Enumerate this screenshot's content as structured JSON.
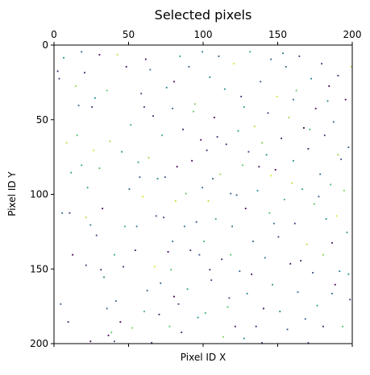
{
  "chart_data": {
    "type": "heatmap",
    "title": "Selected pixels",
    "xlabel": "Pixel ID X",
    "ylabel": "Pixel ID Y",
    "xlim": [
      0,
      200
    ],
    "ylim": [
      200,
      0
    ],
    "x_ticks": [
      "0",
      "50",
      "100",
      "150",
      "200"
    ],
    "y_ticks": [
      "0",
      "50",
      "100",
      "150",
      "200"
    ],
    "x_tick_position": "top",
    "grid": false,
    "colormap": "viridis",
    "colors": {
      "background": "#ffffff",
      "axes": "#000000",
      "low": "#440154",
      "mid_low": "#3b528b",
      "mid": "#21918c",
      "mid_high": "#5ec962",
      "high": "#fde725"
    },
    "pixels": [
      [
        2,
        17,
        0.1
      ],
      [
        3,
        22,
        0.2
      ],
      [
        6,
        8,
        0.5
      ],
      [
        8,
        65,
        0.9
      ],
      [
        10,
        112,
        0.2
      ],
      [
        14,
        27,
        0.85
      ],
      [
        16,
        40,
        0.35
      ],
      [
        18,
        4,
        0.3
      ],
      [
        18,
        80,
        0.6
      ],
      [
        20,
        18,
        0.1
      ],
      [
        22,
        95,
        0.55
      ],
      [
        24,
        120,
        0.4
      ],
      [
        25,
        41,
        0.15
      ],
      [
        26,
        70,
        0.95
      ],
      [
        28,
        127,
        0.2
      ],
      [
        30,
        82,
        0.7
      ],
      [
        31,
        150,
        0.1
      ],
      [
        33,
        155,
        0.45
      ],
      [
        35,
        176,
        0.3
      ],
      [
        36,
        194,
        0.0
      ],
      [
        38,
        192,
        0.75
      ],
      [
        40,
        198,
        0.25
      ],
      [
        42,
        6,
        0.9
      ],
      [
        44,
        185,
        0.0
      ],
      [
        45,
        71,
        0.5
      ],
      [
        48,
        14,
        0.05
      ],
      [
        50,
        96,
        0.35
      ],
      [
        52,
        189,
        0.8
      ],
      [
        54,
        137,
        0.1
      ],
      [
        56,
        78,
        0.55
      ],
      [
        58,
        32,
        0.2
      ],
      [
        60,
        178,
        0.65
      ],
      [
        61,
        9,
        0.05
      ],
      [
        62,
        164,
        0.3
      ],
      [
        63,
        75,
        0.85
      ],
      [
        64,
        16,
        0.4
      ],
      [
        66,
        47,
        0.15
      ],
      [
        67,
        148,
        0.95
      ],
      [
        68,
        114,
        0.2
      ],
      [
        70,
        180,
        0.1
      ],
      [
        72,
        60,
        0.6
      ],
      [
        74,
        88,
        0.25
      ],
      [
        75,
        28,
        0.45
      ],
      [
        76,
        138,
        0.0
      ],
      [
        78,
        150,
        0.7
      ],
      [
        79,
        42,
        0.35
      ],
      [
        80,
        24,
        0.05
      ],
      [
        81,
        104,
        0.9
      ],
      [
        83,
        173,
        0.2
      ],
      [
        84,
        7,
        0.55
      ],
      [
        86,
        56,
        0.1
      ],
      [
        87,
        121,
        0.4
      ],
      [
        88,
        99,
        0.75
      ],
      [
        90,
        14,
        0.3
      ],
      [
        91,
        137,
        0.15
      ],
      [
        92,
        77,
        0.0
      ],
      [
        94,
        39,
        0.8
      ],
      [
        95,
        118,
        0.25
      ],
      [
        96,
        182,
        0.5
      ],
      [
        98,
        63,
        0.05
      ],
      [
        99,
        95,
        0.35
      ],
      [
        100,
        131,
        0.65
      ],
      [
        102,
        70,
        0.1
      ],
      [
        103,
        104,
        0.9
      ],
      [
        104,
        21,
        0.45
      ],
      [
        105,
        157,
        0.2
      ],
      [
        107,
        48,
        0.0
      ],
      [
        108,
        116,
        0.6
      ],
      [
        110,
        7,
        0.3
      ],
      [
        111,
        86,
        0.85
      ],
      [
        112,
        143,
        0.15
      ],
      [
        114,
        29,
        0.5
      ],
      [
        115,
        66,
        0.1
      ],
      [
        116,
        175,
        0.7
      ],
      [
        118,
        99,
        0.25
      ],
      [
        119,
        121,
        0.4
      ],
      [
        120,
        12,
        0.95
      ],
      [
        121,
        188,
        0.05
      ],
      [
        123,
        57,
        0.55
      ],
      [
        124,
        151,
        0.3
      ],
      [
        125,
        34,
        0.15
      ],
      [
        126,
        80,
        0.75
      ],
      [
        128,
        109,
        0.0
      ],
      [
        129,
        166,
        0.45
      ],
      [
        130,
        71,
        0.2
      ],
      [
        131,
        4,
        0.6
      ],
      [
        133,
        131,
        0.35
      ],
      [
        134,
        54,
        0.9
      ],
      [
        135,
        188,
        0.1
      ],
      [
        136,
        97,
        0.5
      ],
      [
        138,
        24,
        0.25
      ],
      [
        139,
        65,
        0.8
      ],
      [
        140,
        176,
        0.05
      ],
      [
        141,
        142,
        0.4
      ],
      [
        143,
        45,
        0.15
      ],
      [
        144,
        112,
        0.7
      ],
      [
        145,
        9,
        0.3
      ],
      [
        146,
        160,
        0.55
      ],
      [
        148,
        83,
        0.0
      ],
      [
        149,
        34,
        0.95
      ],
      [
        150,
        128,
        0.2
      ],
      [
        151,
        178,
        0.45
      ],
      [
        152,
        62,
        0.1
      ],
      [
        154,
        103,
        0.65
      ],
      [
        155,
        14,
        0.35
      ],
      [
        156,
        190,
        0.25
      ],
      [
        157,
        48,
        0.85
      ],
      [
        158,
        146,
        0.05
      ],
      [
        160,
        77,
        0.5
      ],
      [
        161,
        119,
        0.15
      ],
      [
        162,
        30,
        0.75
      ],
      [
        163,
        165,
        0.4
      ],
      [
        164,
        7,
        0.2
      ],
      [
        166,
        96,
        0.6
      ],
      [
        167,
        55,
        0.0
      ],
      [
        168,
        183,
        0.3
      ],
      [
        169,
        133,
        0.9
      ],
      [
        170,
        69,
        0.1
      ],
      [
        172,
        22,
        0.45
      ],
      [
        173,
        152,
        0.25
      ],
      [
        174,
        106,
        0.7
      ],
      [
        175,
        42,
        0.05
      ],
      [
        176,
        174,
        0.55
      ],
      [
        178,
        86,
        0.35
      ],
      [
        179,
        12,
        0.15
      ],
      [
        180,
        140,
        0.8
      ],
      [
        181,
        60,
        0.2
      ],
      [
        182,
        116,
        0.5
      ],
      [
        184,
        27,
        0.0
      ],
      [
        185,
        93,
        0.65
      ],
      [
        186,
        166,
        0.4
      ],
      [
        187,
        51,
        0.3
      ],
      [
        189,
        114,
        0.95
      ],
      [
        190,
        20,
        0.1
      ],
      [
        191,
        151,
        0.45
      ],
      [
        192,
        76,
        0.25
      ],
      [
        193,
        188,
        0.7
      ],
      [
        195,
        36,
        0.05
      ],
      [
        196,
        125,
        0.55
      ],
      [
        197,
        68,
        0.35
      ],
      [
        198,
        170,
        0.15
      ],
      [
        199,
        14,
        0.85
      ],
      [
        12,
        140,
        0.0
      ],
      [
        47,
        121,
        0.6
      ],
      [
        71,
        159,
        0.3
      ],
      [
        85,
        192,
        0.1
      ],
      [
        93,
        44,
        0.75
      ],
      [
        117,
        169,
        0.2
      ],
      [
        127,
        196,
        0.5
      ],
      [
        137,
        81,
        0.05
      ],
      [
        147,
        119,
        0.4
      ],
      [
        159,
        92,
        0.9
      ],
      [
        165,
        144,
        0.15
      ],
      [
        171,
        56,
        0.65
      ],
      [
        177,
        101,
        0.25
      ],
      [
        183,
        37,
        0.45
      ],
      [
        188,
        160,
        0.0
      ],
      [
        194,
        97,
        0.8
      ],
      [
        5,
        112,
        0.35
      ],
      [
        9,
        185,
        0.1
      ],
      [
        15,
        60,
        0.7
      ],
      [
        21,
        147,
        0.2
      ],
      [
        27,
        35,
        0.5
      ],
      [
        32,
        109,
        0.05
      ],
      [
        37,
        64,
        0.85
      ],
      [
        41,
        171,
        0.3
      ],
      [
        46,
        148,
        0.15
      ],
      [
        51,
        53,
        0.6
      ],
      [
        55,
        121,
        0.4
      ],
      [
        59,
        101,
        0.95
      ],
      [
        65,
        199,
        0.1
      ],
      [
        69,
        89,
        0.45
      ],
      [
        73,
        115,
        0.2
      ],
      [
        77,
        188,
        0.75
      ],
      [
        82,
        81,
        0.0
      ],
      [
        89,
        163,
        0.55
      ],
      [
        97,
        140,
        0.25
      ],
      [
        101,
        179,
        0.65
      ],
      [
        106,
        89,
        0.35
      ],
      [
        109,
        61,
        0.15
      ],
      [
        113,
        195,
        0.8
      ],
      [
        122,
        100,
        0.3
      ],
      [
        132,
        153,
        0.05
      ],
      [
        142,
        73,
        0.5
      ],
      [
        153,
        5,
        0.4
      ],
      [
        21,
        115,
        0.9
      ],
      [
        30,
        6,
        0.05
      ],
      [
        40,
        140,
        0.6
      ],
      [
        60,
        41,
        0.2
      ],
      [
        80,
        168,
        0.0
      ],
      [
        99,
        4,
        0.45
      ],
      [
        118,
        140,
        0.7
      ],
      [
        139,
        199,
        0.15
      ],
      [
        160,
        36,
        0.35
      ],
      [
        180,
        188,
        0.1
      ],
      [
        190,
        73,
        0.85
      ],
      [
        4,
        173,
        0.3
      ],
      [
        11,
        85,
        0.55
      ],
      [
        24,
        198,
        0.0
      ],
      [
        35,
        30,
        0.75
      ],
      [
        57,
        88,
        0.25
      ],
      [
        79,
        131,
        0.4
      ],
      [
        104,
        150,
        0.1
      ],
      [
        127,
        41,
        0.6
      ],
      [
        145,
        87,
        0.95
      ],
      [
        170,
        199,
        0.2
      ],
      [
        186,
        132,
        0.05
      ],
      [
        197,
        153,
        0.5
      ]
    ]
  }
}
